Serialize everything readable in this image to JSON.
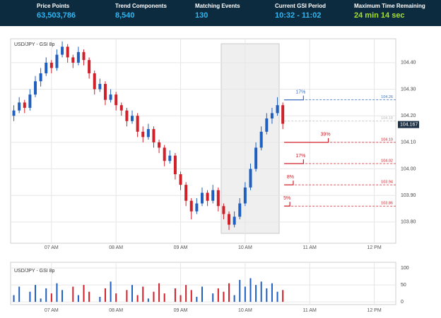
{
  "header": {
    "stats": [
      {
        "label": "Price Points",
        "value": "63,503,786"
      },
      {
        "label": "Trend Components",
        "value": "8,540"
      },
      {
        "label": "Matching Events",
        "value": "130"
      },
      {
        "label": "Current GSI Period",
        "value": "10:32 - 11:02"
      },
      {
        "label": "Maximum Time Remaining",
        "value": "24 min 14 sec"
      }
    ]
  },
  "chart_data": [
    {
      "type": "candlestick",
      "title": "USD/JPY - GSI 8p",
      "up_color": "#1f5fbf",
      "down_color": "#d0202a",
      "x": [
        385,
        390,
        395,
        400,
        405,
        410,
        415,
        420,
        425,
        430,
        435,
        440,
        445,
        450,
        455,
        460,
        465,
        470,
        475,
        480,
        485,
        490,
        495,
        500,
        505,
        510,
        515,
        520,
        525,
        530,
        535,
        540,
        545,
        550,
        555,
        560,
        565,
        570,
        575,
        580,
        585,
        590,
        595,
        600,
        605,
        610,
        615,
        620,
        625,
        630,
        635
      ],
      "ohlc": [
        [
          104.2,
          104.24,
          104.18,
          104.22
        ],
        [
          104.22,
          104.27,
          104.21,
          104.25
        ],
        [
          104.25,
          104.26,
          104.21,
          104.23
        ],
        [
          104.23,
          104.3,
          104.22,
          104.28
        ],
        [
          104.28,
          104.35,
          104.27,
          104.33
        ],
        [
          104.33,
          104.38,
          104.31,
          104.36
        ],
        [
          104.36,
          104.42,
          104.35,
          104.4
        ],
        [
          104.4,
          104.41,
          104.36,
          104.38
        ],
        [
          104.38,
          104.45,
          104.37,
          104.43
        ],
        [
          104.43,
          104.48,
          104.42,
          104.46
        ],
        [
          104.46,
          104.47,
          104.4,
          104.42
        ],
        [
          104.42,
          104.43,
          104.38,
          104.4
        ],
        [
          104.4,
          104.46,
          104.39,
          104.44
        ],
        [
          104.44,
          104.45,
          104.39,
          104.41
        ],
        [
          104.41,
          104.42,
          104.34,
          104.36
        ],
        [
          104.36,
          104.37,
          104.28,
          104.3
        ],
        [
          104.3,
          104.34,
          104.29,
          104.32
        ],
        [
          104.32,
          104.33,
          104.24,
          104.26
        ],
        [
          104.26,
          104.3,
          104.25,
          104.28
        ],
        [
          104.28,
          104.29,
          104.22,
          104.24
        ],
        [
          104.24,
          104.25,
          104.2,
          104.22
        ],
        [
          104.22,
          104.23,
          104.16,
          104.18
        ],
        [
          104.18,
          104.22,
          104.17,
          104.2
        ],
        [
          104.2,
          104.21,
          104.12,
          104.14
        ],
        [
          104.14,
          104.16,
          104.1,
          104.12
        ],
        [
          104.12,
          104.17,
          104.11,
          104.15
        ],
        [
          104.15,
          104.16,
          104.08,
          104.1
        ],
        [
          104.1,
          104.11,
          104.06,
          104.08
        ],
        [
          104.08,
          104.09,
          104.01,
          104.03
        ],
        [
          104.03,
          104.07,
          104.02,
          104.05
        ],
        [
          104.05,
          104.06,
          103.96,
          103.98
        ],
        [
          103.98,
          103.99,
          103.92,
          103.94
        ],
        [
          103.94,
          103.95,
          103.86,
          103.88
        ],
        [
          103.88,
          103.89,
          103.81,
          103.84
        ],
        [
          103.84,
          103.89,
          103.83,
          103.87
        ],
        [
          103.87,
          103.93,
          103.86,
          103.91
        ],
        [
          103.91,
          103.92,
          103.86,
          103.88
        ],
        [
          103.88,
          103.94,
          103.87,
          103.92
        ],
        [
          103.92,
          103.93,
          103.84,
          103.86
        ],
        [
          103.86,
          103.87,
          103.81,
          103.83
        ],
        [
          103.83,
          103.84,
          103.77,
          103.79
        ],
        [
          103.79,
          103.84,
          103.78,
          103.82
        ],
        [
          103.82,
          103.89,
          103.81,
          103.87
        ],
        [
          103.87,
          103.95,
          103.86,
          103.93
        ],
        [
          103.93,
          104.02,
          103.92,
          104.0
        ],
        [
          104.0,
          104.1,
          103.99,
          104.08
        ],
        [
          104.08,
          104.16,
          104.07,
          104.14
        ],
        [
          104.14,
          104.21,
          104.13,
          104.19
        ],
        [
          104.19,
          104.23,
          104.17,
          104.21
        ],
        [
          104.21,
          104.27,
          104.2,
          104.24
        ],
        [
          104.24,
          104.25,
          104.15,
          104.17
        ]
      ],
      "ylim": [
        103.72,
        104.49
      ],
      "yticks": [
        {
          "value": 103.8,
          "label": "103.80"
        },
        {
          "value": 103.9,
          "label": "103.90"
        },
        {
          "value": 104.0,
          "label": "104.00"
        },
        {
          "value": 104.1,
          "label": "104.10"
        },
        {
          "value": 104.2,
          "label": "104.20"
        },
        {
          "value": 104.3,
          "label": "104.30"
        },
        {
          "value": 104.4,
          "label": "104.40"
        }
      ],
      "xlim": [
        382,
        740
      ],
      "xticks": [
        {
          "value": 420,
          "label": "07 AM"
        },
        {
          "value": 480,
          "label": "08 AM"
        },
        {
          "value": 540,
          "label": "09 AM"
        },
        {
          "value": 600,
          "label": "10 AM"
        },
        {
          "value": 660,
          "label": "11 AM"
        },
        {
          "value": 720,
          "label": "12 PM"
        }
      ],
      "last_price": 104.167,
      "levels": [
        {
          "value": 104.26,
          "color": "#3a6fc4",
          "percent": 17,
          "percent_label": "17%"
        },
        {
          "value": 104.18,
          "color": "#bbbbbb"
        },
        {
          "value": 104.1,
          "label": "104.10",
          "color": "#d0202a",
          "percent": 39,
          "percent_label": "39%"
        },
        {
          "value": 104.02,
          "color": "#d0202a",
          "percent": 17,
          "percent_label": "17%"
        },
        {
          "value": 103.94,
          "color": "#d0202a",
          "percent": 8,
          "percent_label": "8%"
        },
        {
          "value": 103.86,
          "color": "#d0202a",
          "percent": 5,
          "percent_label": "5%"
        }
      ]
    },
    {
      "type": "bar",
      "title": "USD/JPY - GSI 8p",
      "values": [
        20,
        45,
        0,
        30,
        50,
        10,
        40,
        25,
        55,
        35,
        0,
        45,
        20,
        50,
        30,
        0,
        15,
        40,
        60,
        25,
        0,
        35,
        50,
        20,
        45,
        10,
        30,
        55,
        25,
        0,
        40,
        20,
        50,
        35,
        15,
        45,
        0,
        25,
        40,
        30,
        55,
        20,
        65,
        45,
        70,
        50,
        60,
        40,
        55,
        30,
        35
      ],
      "ylim": [
        -8,
        117
      ],
      "yticks": [
        0,
        50,
        100
      ]
    }
  ]
}
